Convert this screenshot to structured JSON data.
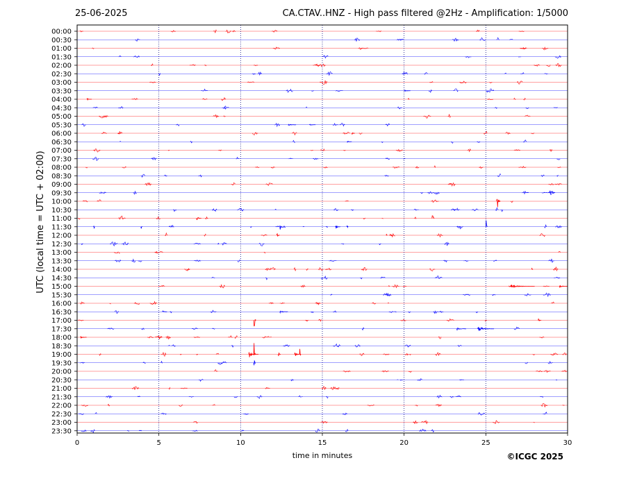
{
  "header": {
    "date": "25-06-2025",
    "title": "CA.CTAV..HNZ - High pass filtered @2Hz - Amplification: 1/5000"
  },
  "copyright": "©ICGC 2025",
  "colors": {
    "odd_rows": "#ff0000",
    "even_rows": "#0000ff",
    "gridline": "#000080"
  },
  "chart_data": {
    "type": "line",
    "xlabel": "time in minutes",
    "ylabel": "UTC (local time = UTC + 02:00)",
    "xlim": [
      0,
      30
    ],
    "x_ticks": [
      0,
      5,
      10,
      15,
      20,
      25,
      30
    ],
    "x_tick_labels": [
      "0",
      "5",
      "10",
      "15",
      "20",
      "25",
      "30"
    ],
    "vertical_gridlines_at": [
      5,
      10,
      15,
      20,
      25
    ],
    "grid": "vertical dotted",
    "row_labels": [
      "00:00",
      "00:30",
      "01:00",
      "01:30",
      "02:00",
      "02:30",
      "03:00",
      "03:30",
      "04:00",
      "04:30",
      "05:00",
      "05:30",
      "06:00",
      "06:30",
      "07:00",
      "07:30",
      "08:00",
      "08:30",
      "09:00",
      "09:30",
      "10:00",
      "10:30",
      "11:00",
      "11:30",
      "12:00",
      "12:30",
      "13:00",
      "13:30",
      "14:00",
      "14:30",
      "15:00",
      "15:30",
      "16:00",
      "16:30",
      "17:00",
      "17:30",
      "18:00",
      "18:30",
      "19:00",
      "19:30",
      "20:00",
      "20:30",
      "21:00",
      "21:30",
      "22:00",
      "22:30",
      "23:00",
      "23:30"
    ],
    "row_colors": [
      "red",
      "blue"
    ],
    "events": [
      {
        "row": 7,
        "minute": 20.0,
        "amp": 0.25,
        "dur": 0.4
      },
      {
        "row": 11,
        "minute": 12.9,
        "amp": 0.2,
        "dur": 0.5
      },
      {
        "row": 11,
        "minute": 14.2,
        "amp": 0.15,
        "dur": 0.4
      },
      {
        "row": 12,
        "minute": 16.8,
        "amp": 0.35,
        "dur": 0.2
      },
      {
        "row": 13,
        "minute": 16.5,
        "amp": 0.25,
        "dur": 0.3
      },
      {
        "row": 20,
        "minute": 25.7,
        "amp": 1.8,
        "dur": 0.2
      },
      {
        "row": 21,
        "minute": 12.1,
        "amp": 0.6,
        "dur": 0.1
      },
      {
        "row": 22,
        "minute": 21.7,
        "amp": 2.2,
        "dur": 0.15
      },
      {
        "row": 22,
        "minute": 7.3,
        "amp": 0.6,
        "dur": 0.3
      },
      {
        "row": 23,
        "minute": 1.0,
        "amp": 1.4,
        "dur": 0.1
      },
      {
        "row": 23,
        "minute": 3.9,
        "amp": 1.2,
        "dur": 0.1
      },
      {
        "row": 23,
        "minute": 10.6,
        "amp": 0.7,
        "dur": 0.1
      },
      {
        "row": 23,
        "minute": 12.4,
        "amp": 1.6,
        "dur": 0.1
      },
      {
        "row": 23,
        "minute": 13.8,
        "amp": 0.8,
        "dur": 0.1
      },
      {
        "row": 23,
        "minute": 15.8,
        "amp": 0.6,
        "dur": 0.3
      },
      {
        "row": 23,
        "minute": 16.5,
        "amp": 0.8,
        "dur": 0.1
      },
      {
        "row": 23,
        "minute": 25.0,
        "amp": 2.8,
        "dur": 0.1
      },
      {
        "row": 24,
        "minute": 12.2,
        "amp": 0.8,
        "dur": 0.2
      },
      {
        "row": 24,
        "minute": 18.9,
        "amp": 0.7,
        "dur": 0.1
      },
      {
        "row": 25,
        "minute": 8.6,
        "amp": 0.6,
        "dur": 0.1
      },
      {
        "row": 33,
        "minute": 5.2,
        "amp": 0.5,
        "dur": 0.3
      },
      {
        "row": 33,
        "minute": 12.4,
        "amp": 0.3,
        "dur": 0.5
      },
      {
        "row": 34,
        "minute": 10.8,
        "amp": 4.0,
        "dur": 0.15
      },
      {
        "row": 34,
        "minute": 28.2,
        "amp": 0.4,
        "dur": 0.2
      },
      {
        "row": 35,
        "minute": 24.5,
        "amp": 0.6,
        "dur": 1.0
      },
      {
        "row": 35,
        "minute": 23.2,
        "amp": 0.3,
        "dur": 0.6
      },
      {
        "row": 36,
        "minute": 0.2,
        "amp": 0.3,
        "dur": 0.4
      },
      {
        "row": 38,
        "minute": 10.5,
        "amp": 0.7,
        "dur": 0.6
      },
      {
        "row": 38,
        "minute": 10.8,
        "amp": 5.0,
        "dur": 0.12
      },
      {
        "row": 38,
        "minute": 12.3,
        "amp": 1.0,
        "dur": 0.15
      },
      {
        "row": 38,
        "minute": 13.6,
        "amp": 2.5,
        "dur": 0.1
      },
      {
        "row": 38,
        "minute": 13.3,
        "amp": 0.6,
        "dur": 0.4
      },
      {
        "row": 38,
        "minute": 7.3,
        "amp": 0.6,
        "dur": 0.1
      },
      {
        "row": 38,
        "minute": 6.3,
        "amp": 0.5,
        "dur": 0.1
      },
      {
        "row": 39,
        "minute": 10.8,
        "amp": 2.2,
        "dur": 0.12
      },
      {
        "row": 30,
        "minute": 26.5,
        "amp": 0.3,
        "dur": 1.5
      },
      {
        "row": 30,
        "minute": 29.5,
        "amp": 0.3,
        "dur": 0.5
      },
      {
        "row": 28,
        "minute": 27.8,
        "amp": 0.5,
        "dur": 0.1
      },
      {
        "row": 8,
        "minute": 0.6,
        "amp": 0.2,
        "dur": 0.3
      },
      {
        "row": 31,
        "minute": 25.4,
        "amp": 0.3,
        "dur": 0.2
      }
    ]
  }
}
